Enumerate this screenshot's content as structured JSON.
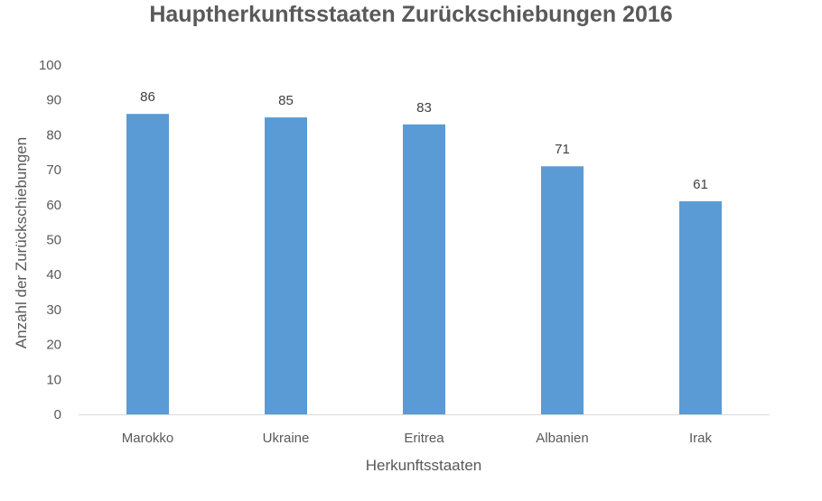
{
  "chart_data": {
    "type": "bar",
    "title": "Hauptherkunftsstaaten Zurückschiebungen 2016",
    "xlabel": "Herkunftsstaaten",
    "ylabel": "Anzahl der Zurückschiebungen",
    "categories": [
      "Marokko",
      "Ukraine",
      "Eritrea",
      "Albanien",
      "Irak"
    ],
    "values": [
      86,
      85,
      83,
      71,
      61
    ],
    "ylim": [
      0,
      100
    ],
    "yticks": [
      "0",
      "10",
      "20",
      "30",
      "40",
      "50",
      "60",
      "70",
      "80",
      "90",
      "100"
    ],
    "grid": false,
    "legend": "none",
    "bar_color": "#5b9bd5",
    "axis_color": "#d9d9d9"
  }
}
